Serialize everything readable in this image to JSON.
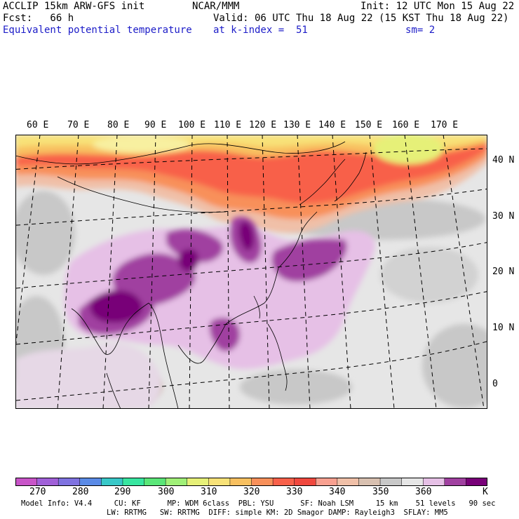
{
  "header": {
    "line1_left": "ACCLIP 15km ARW-GFS init",
    "line1_mid": "NCAR/MMM",
    "line1_right": "Init: 12 UTC Mon 15 Aug 22",
    "line2_left": "Fcst:   66 h",
    "line2_right": "Valid: 06 UTC Thu 18 Aug 22 (15 KST Thu 18 Aug 22)",
    "line3_left": "Equivalent potential temperature",
    "line3_mid": "at k-index =  51",
    "line3_right": "sm= 2"
  },
  "map": {
    "lon_labels": [
      "60 E",
      "70 E",
      "80 E",
      "90 E",
      "100 E",
      "110 E",
      "120 E",
      "130 E",
      "140 E",
      "150 E",
      "160 E",
      "170 E"
    ],
    "lat_labels": [
      "40 N",
      "30 N",
      "20 N",
      "10 N",
      "0"
    ]
  },
  "colorbar": {
    "unit": "K",
    "tick_labels": [
      "270",
      "280",
      "290",
      "300",
      "310",
      "320",
      "330",
      "340",
      "350",
      "360"
    ],
    "colors": [
      "#c854c8",
      "#a060d8",
      "#7f72e0",
      "#5a8ae6",
      "#38c8c8",
      "#38e6a0",
      "#5ae678",
      "#a0f078",
      "#e6f078",
      "#f8e278",
      "#f8c060",
      "#f8905a",
      "#f8604a",
      "#f0483e",
      "#f8a090",
      "#f0c0a8",
      "#d8c0b0",
      "#c8c8c8",
      "#e6e6e6",
      "#e6c0e6",
      "#a040a0",
      "#780078"
    ]
  },
  "footer": {
    "line1": "Model Info: V4.4     CU: KF      MP: WDM 6class  PBL: YSU      SF: Noah LSM     15 km    51 levels   90 sec",
    "line2": "LW: RRTMG   SW: RRTMG  DIFF: simple KM: 2D Smagor DAMP: Rayleigh3  SFLAY: MM5"
  }
}
